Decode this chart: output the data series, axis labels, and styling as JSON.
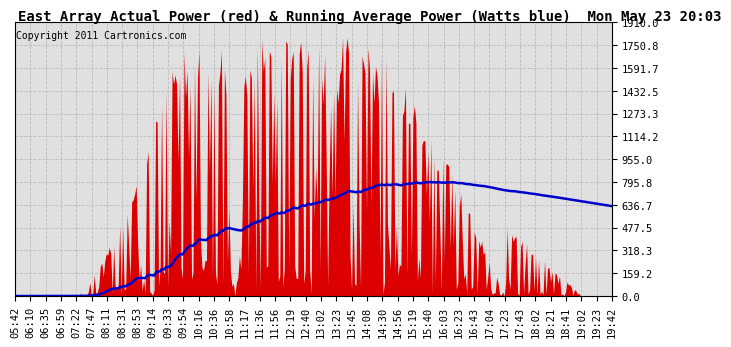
{
  "title": "East Array Actual Power (red) & Running Average Power (Watts blue)  Mon May 23 20:03",
  "copyright": "Copyright 2011 Cartronics.com",
  "yticks": [
    0.0,
    159.2,
    318.3,
    477.5,
    636.7,
    795.8,
    955.0,
    1114.2,
    1273.3,
    1432.5,
    1591.7,
    1750.8,
    1910.0
  ],
  "ylim": [
    0.0,
    1910.0
  ],
  "xtick_labels": [
    "05:42",
    "06:10",
    "06:35",
    "06:59",
    "07:22",
    "07:47",
    "08:11",
    "08:31",
    "08:53",
    "09:14",
    "09:33",
    "09:54",
    "10:16",
    "10:36",
    "10:58",
    "11:17",
    "11:36",
    "11:56",
    "12:19",
    "12:40",
    "13:02",
    "13:23",
    "13:45",
    "14:08",
    "14:30",
    "14:56",
    "15:19",
    "15:40",
    "16:03",
    "16:23",
    "16:43",
    "17:04",
    "17:23",
    "17:43",
    "18:02",
    "18:21",
    "18:41",
    "19:02",
    "19:23",
    "19:42"
  ],
  "plot_bg_color": "#e0e0e0",
  "bar_color": "#dd0000",
  "line_color": "#0000cc",
  "grid_color": "#bbbbbb",
  "title_bg_color": "#ffffff",
  "title_fontsize": 10,
  "axis_fontsize": 7.5,
  "copyright_fontsize": 7,
  "n_points": 400
}
